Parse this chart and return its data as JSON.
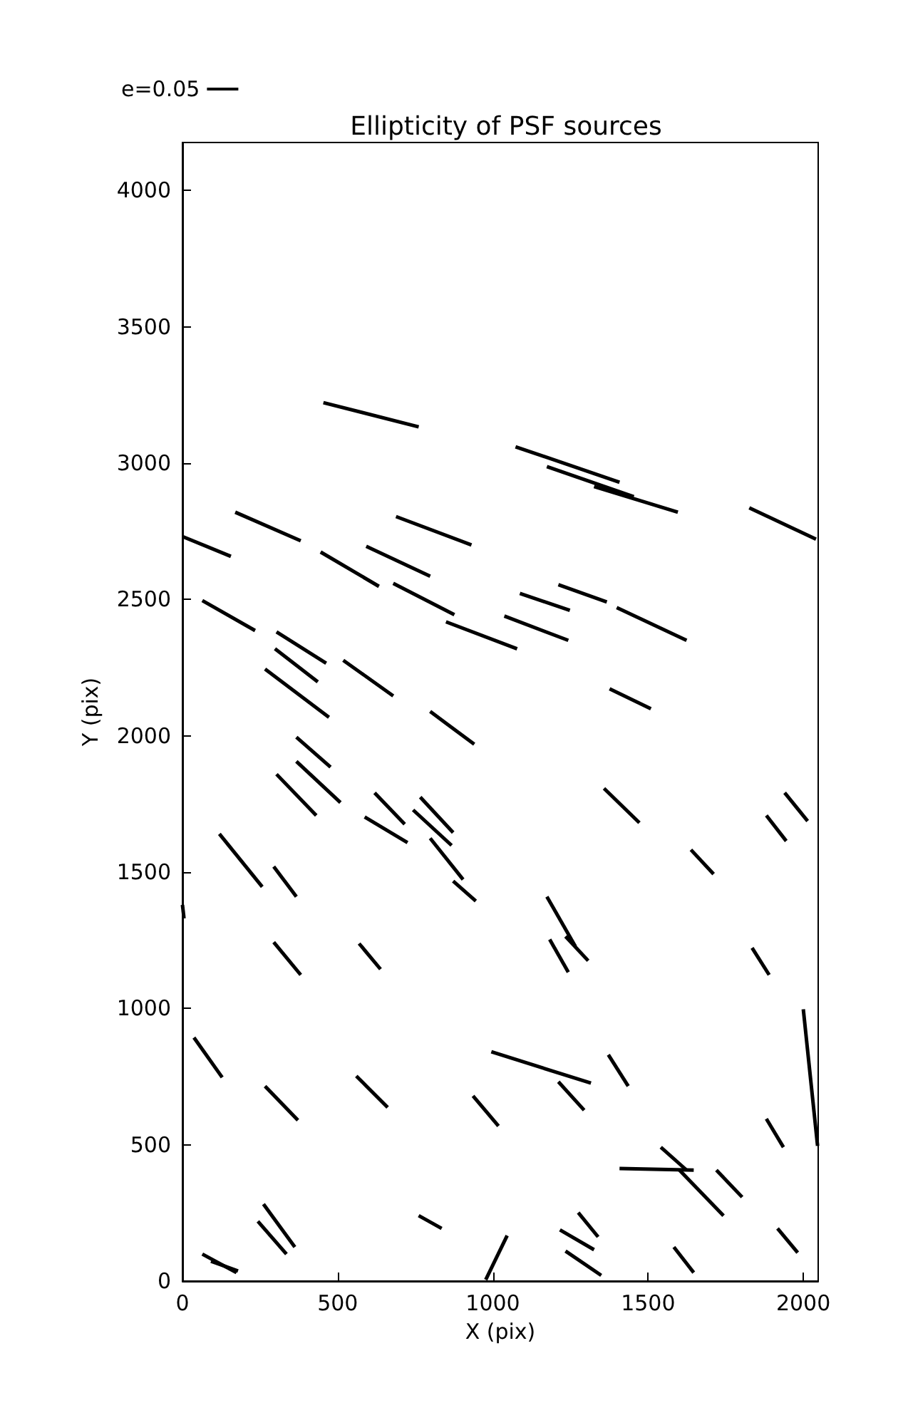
{
  "chart_data": {
    "type": "line",
    "title": "Ellipticity of PSF sources",
    "xlabel": "X (pix)",
    "ylabel": "Y (pix)",
    "xlim": [
      0,
      2048
    ],
    "xticks": [
      0,
      500,
      1000,
      1500,
      2000
    ],
    "ylim": [
      0,
      4176
    ],
    "yticks": [
      0,
      500,
      1000,
      1500,
      2000,
      2500,
      3000,
      3500,
      4000
    ],
    "grid": false,
    "legend": "top left",
    "marker": "none",
    "line_style": "solid",
    "series": [
      {
        "name": "e=0.05",
        "color": "#000000",
        "x": [
          454,
          761
        ],
        "values": [
          3222,
          3133
        ]
      },
      {
        "color": "#000000",
        "x": [
          1073,
          1408
        ],
        "values": [
          3060,
          2930
        ]
      },
      {
        "color": "#000000",
        "x": [
          1174,
          1454
        ],
        "values": [
          2987,
          2877
        ]
      },
      {
        "color": "#000000",
        "x": [
          1326,
          1596
        ],
        "values": [
          2914,
          2820
        ]
      },
      {
        "color": "#000000",
        "x": [
          170,
          381
        ],
        "values": [
          2820,
          2715
        ]
      },
      {
        "color": "#000000",
        "x": [
          688,
          931
        ],
        "values": [
          2804,
          2700
        ]
      },
      {
        "color": "#000000",
        "x": [
          0,
          156
        ],
        "values": [
          2731,
          2658
        ]
      },
      {
        "color": "#000000",
        "x": [
          445,
          633
        ],
        "values": [
          2674,
          2548
        ]
      },
      {
        "color": "#000000",
        "x": [
          592,
          798
        ],
        "values": [
          2695,
          2585
        ]
      },
      {
        "color": "#000000",
        "x": [
          679,
          876
        ],
        "values": [
          2559,
          2444
        ]
      },
      {
        "color": "#000000",
        "x": [
          1087,
          1248
        ],
        "values": [
          2522,
          2460
        ]
      },
      {
        "color": "#000000",
        "x": [
          1211,
          1367
        ],
        "values": [
          2554,
          2491
        ]
      },
      {
        "color": "#000000",
        "x": [
          1399,
          1624
        ],
        "values": [
          2470,
          2350
        ]
      },
      {
        "color": "#000000",
        "x": [
          1826,
          2041
        ],
        "values": [
          2836,
          2721
        ]
      },
      {
        "color": "#000000",
        "x": [
          64,
          234
        ],
        "values": [
          2496,
          2386
        ]
      },
      {
        "color": "#000000",
        "x": [
          1037,
          1243
        ],
        "values": [
          2439,
          2350
        ]
      },
      {
        "color": "#000000",
        "x": [
          849,
          1078
        ],
        "values": [
          2418,
          2319
        ]
      },
      {
        "color": "#000000",
        "x": [
          303,
          463
        ],
        "values": [
          2381,
          2266
        ]
      },
      {
        "color": "#000000",
        "x": [
          298,
          436
        ],
        "values": [
          2319,
          2198
        ]
      },
      {
        "color": "#000000",
        "x": [
          266,
          472
        ],
        "values": [
          2245,
          2068
        ]
      },
      {
        "color": "#000000",
        "x": [
          518,
          679
        ],
        "values": [
          2277,
          2146
        ]
      },
      {
        "color": "#000000",
        "x": [
          1376,
          1509
        ],
        "values": [
          2172,
          2099
        ]
      },
      {
        "color": "#000000",
        "x": [
          798,
          940
        ],
        "values": [
          2089,
          1969
        ]
      },
      {
        "color": "#000000",
        "x": [
          367,
          477
        ],
        "values": [
          1995,
          1885
        ]
      },
      {
        "color": "#000000",
        "x": [
          367,
          509
        ],
        "values": [
          1906,
          1755
        ]
      },
      {
        "color": "#000000",
        "x": [
          303,
          431
        ],
        "values": [
          1859,
          1708
        ]
      },
      {
        "color": "#000000",
        "x": [
          619,
          716
        ],
        "values": [
          1791,
          1676
        ]
      },
      {
        "color": "#000000",
        "x": [
          766,
          872
        ],
        "values": [
          1775,
          1645
        ]
      },
      {
        "color": "#000000",
        "x": [
          743,
          867
        ],
        "values": [
          1728,
          1598
        ]
      },
      {
        "color": "#000000",
        "x": [
          587,
          725
        ],
        "values": [
          1702,
          1608
        ]
      },
      {
        "color": "#000000",
        "x": [
          798,
          904
        ],
        "values": [
          1624,
          1473
        ]
      },
      {
        "color": "#000000",
        "x": [
          872,
          945
        ],
        "values": [
          1467,
          1394
        ]
      },
      {
        "color": "#000000",
        "x": [
          1358,
          1472
        ],
        "values": [
          1807,
          1681
        ]
      },
      {
        "color": "#000000",
        "x": [
          1638,
          1711
        ],
        "values": [
          1582,
          1493
        ]
      },
      {
        "color": "#000000",
        "x": [
          1881,
          1945
        ],
        "values": [
          1708,
          1614
        ]
      },
      {
        "color": "#000000",
        "x": [
          1940,
          2014
        ],
        "values": [
          1791,
          1687
        ]
      },
      {
        "color": "#000000",
        "x": [
          119,
          257
        ],
        "values": [
          1640,
          1446
        ]
      },
      {
        "color": "#000000",
        "x": [
          294,
          367
        ],
        "values": [
          1520,
          1410
        ]
      },
      {
        "color": "#000000",
        "x": [
          294,
          381
        ],
        "values": [
          1243,
          1123
        ]
      },
      {
        "color": "#000000",
        "x": [
          569,
          638
        ],
        "values": [
          1238,
          1144
        ]
      },
      {
        "color": "#000000",
        "x": [
          1174,
          1266
        ],
        "values": [
          1410,
          1227
        ]
      },
      {
        "color": "#000000",
        "x": [
          1183,
          1243
        ],
        "values": [
          1253,
          1133
        ]
      },
      {
        "color": "#000000",
        "x": [
          1234,
          1307
        ],
        "values": [
          1264,
          1175
        ]
      },
      {
        "color": "#000000",
        "x": [
          1835,
          1890
        ],
        "values": [
          1222,
          1123
        ]
      },
      {
        "color": "#000000",
        "x": [
          0,
          5
        ],
        "values": [
          1380,
          1330
        ]
      },
      {
        "color": "#000000",
        "x": [
          37,
          128
        ],
        "values": [
          893,
          747
        ]
      },
      {
        "color": "#000000",
        "x": [
          266,
          372
        ],
        "values": [
          715,
          590
        ]
      },
      {
        "color": "#000000",
        "x": [
          560,
          661
        ],
        "values": [
          752,
          637
        ]
      },
      {
        "color": "#000000",
        "x": [
          936,
          1018
        ],
        "values": [
          679,
          569
        ]
      },
      {
        "color": "#000000",
        "x": [
          995,
          1316
        ],
        "values": [
          841,
          726
        ]
      },
      {
        "color": "#000000",
        "x": [
          1211,
          1294
        ],
        "values": [
          731,
          627
        ]
      },
      {
        "color": "#000000",
        "x": [
          1372,
          1436
        ],
        "values": [
          830,
          715
        ]
      },
      {
        "color": "#000000",
        "x": [
          2000,
          2046
        ],
        "values": [
          997,
          496
        ]
      },
      {
        "color": "#000000",
        "x": [
          1881,
          1936
        ],
        "values": [
          595,
          491
        ]
      },
      {
        "color": "#000000",
        "x": [
          1408,
          1647
        ],
        "values": [
          413,
          407
        ]
      },
      {
        "color": "#000000",
        "x": [
          1541,
          1624
        ],
        "values": [
          491,
          407
        ]
      },
      {
        "color": "#000000",
        "x": [
          1601,
          1743
        ],
        "values": [
          407,
          240
        ]
      },
      {
        "color": "#000000",
        "x": [
          1720,
          1803
        ],
        "values": [
          407,
          308
        ]
      },
      {
        "color": "#000000",
        "x": [
          261,
          362
        ],
        "values": [
          282,
          125
        ]
      },
      {
        "color": "#000000",
        "x": [
          243,
          335
        ],
        "values": [
          219,
          99
        ]
      },
      {
        "color": "#000000",
        "x": [
          761,
          835
        ],
        "values": [
          240,
          193
        ]
      },
      {
        "color": "#000000",
        "x": [
          977,
          1046
        ],
        "values": [
          5,
          167
        ]
      },
      {
        "color": "#000000",
        "x": [
          1216,
          1326
        ],
        "values": [
          188,
          115
        ]
      },
      {
        "color": "#000000",
        "x": [
          1275,
          1339
        ],
        "values": [
          251,
          162
        ]
      },
      {
        "color": "#000000",
        "x": [
          1234,
          1349
        ],
        "values": [
          110,
          21
        ]
      },
      {
        "color": "#000000",
        "x": [
          64,
          174
        ],
        "values": [
          99,
          31
        ]
      },
      {
        "color": "#000000",
        "x": [
          92,
          179
        ],
        "values": [
          73,
          37
        ]
      },
      {
        "color": "#000000",
        "x": [
          1583,
          1647
        ],
        "values": [
          125,
          31
        ]
      },
      {
        "color": "#000000",
        "x": [
          1917,
          1982
        ],
        "values": [
          193,
          104
        ]
      }
    ]
  }
}
